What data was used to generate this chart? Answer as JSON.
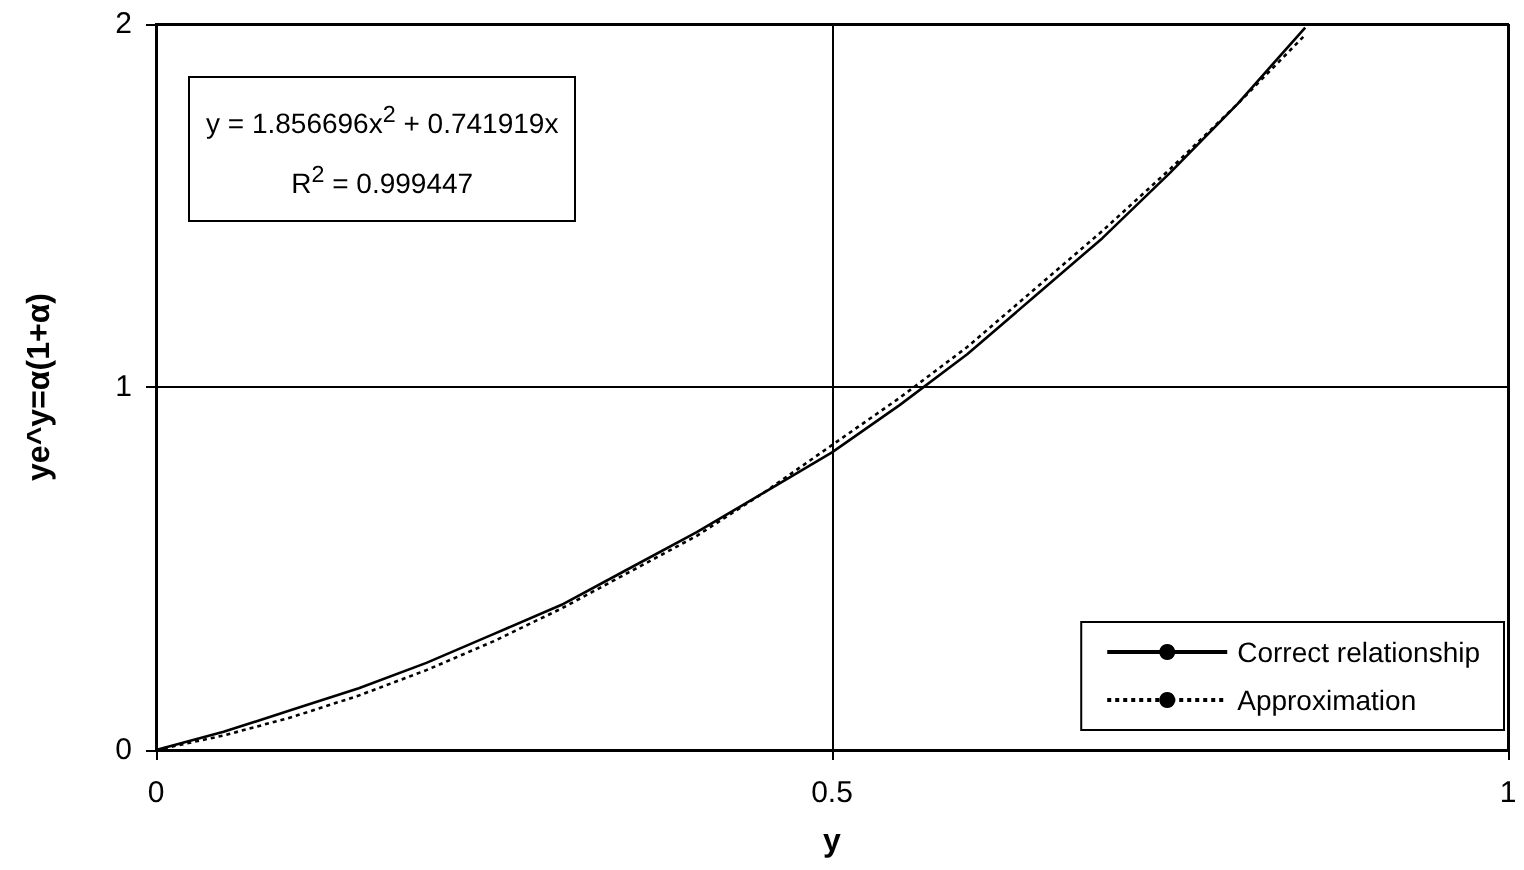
{
  "chart_data": {
    "type": "line",
    "xlabel": "y",
    "ylabel": "ye^y=α(1+α)",
    "xlim": [
      0,
      1
    ],
    "xticks": [
      0,
      0.5,
      1
    ],
    "ylim": [
      0,
      2
    ],
    "yticks": [
      0,
      1,
      2
    ],
    "grid": true,
    "legend": "bottom right",
    "marker": "none",
    "annotations": [
      "y = 1.856696x$^{2}$ + 0.741919x",
      "R$^{2}$ = 0.999447"
    ],
    "series": [
      {
        "name": "Correct relationship",
        "color": "#000000",
        "line_style": "solid",
        "x": [
          0,
          0.05,
          0.1,
          0.15,
          0.2,
          0.25,
          0.3,
          0.35,
          0.4,
          0.45,
          0.5,
          0.55,
          0.6,
          0.65,
          0.7,
          0.75,
          0.8,
          0.85
        ],
        "values": [
          0,
          0.05,
          0.11,
          0.17,
          0.24,
          0.32,
          0.4,
          0.5,
          0.6,
          0.71,
          0.82,
          0.95,
          1.09,
          1.25,
          1.41,
          1.59,
          1.78,
          1.99
        ]
      },
      {
        "name": "Approximation",
        "color": "#000000",
        "line_style": "dotted",
        "x": [
          0,
          0.05,
          0.1,
          0.15,
          0.2,
          0.25,
          0.3,
          0.35,
          0.4,
          0.45,
          0.5,
          0.55,
          0.6,
          0.65,
          0.7,
          0.75,
          0.8,
          0.85
        ],
        "values": [
          0,
          0.04,
          0.09,
          0.15,
          0.22,
          0.3,
          0.39,
          0.49,
          0.59,
          0.71,
          0.84,
          0.97,
          1.11,
          1.27,
          1.43,
          1.6,
          1.78,
          1.97
        ]
      }
    ]
  }
}
